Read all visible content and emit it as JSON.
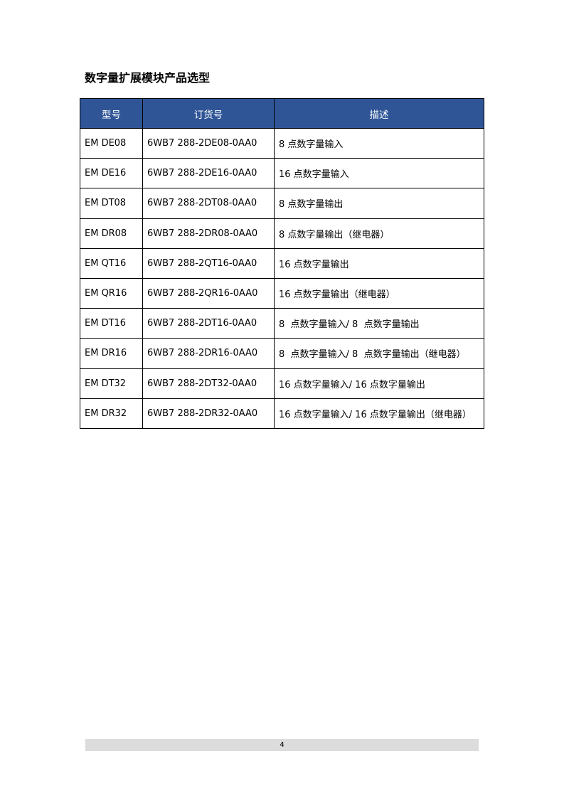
{
  "title": "数字量扩展模块产品选型",
  "table": {
    "headers": [
      "型号",
      "订货号",
      "描述"
    ],
    "rows": [
      [
        "EM DE08",
        "6WB7 288-2DE08-0AA0",
        "8 点数字量输入"
      ],
      [
        "EM DE16",
        "6WB7 288-2DE16-0AA0",
        "16 点数字量输入"
      ],
      [
        "EM DT08",
        "6WB7 288-2DT08-0AA0",
        "8 点数字量输出"
      ],
      [
        "EM DR08",
        "6WB7 288-2DR08-0AA0",
        "8 点数字量输出（继电器）"
      ],
      [
        "EM QT16",
        "6WB7 288-2QT16-0AA0",
        "16 点数字量输出"
      ],
      [
        "EM QR16",
        "6WB7 288-2QR16-0AA0",
        "16 点数字量输出（继电器）"
      ],
      [
        "EM DT16",
        "6WB7 288-2DT16-0AA0",
        "8  点数字量输入/ 8  点数字量输出"
      ],
      [
        "EM DR16",
        "6WB7 288-2DR16-0AA0",
        "8  点数字量输入/ 8  点数字量输出（继电器）"
      ],
      [
        "EM DT32",
        "6WB7 288-2DT32-0AA0",
        "16 点数字量输入/ 16 点数字量输出"
      ],
      [
        "EM DR32",
        "6WB7 288-2DR32-0AA0",
        "16 点数字量输入/ 16 点数字量输出（继电器）"
      ]
    ]
  },
  "footer": {
    "page_number": "4"
  },
  "colors": {
    "header_bg": "#2F5597",
    "footer_bg": "#dcdcdc"
  }
}
